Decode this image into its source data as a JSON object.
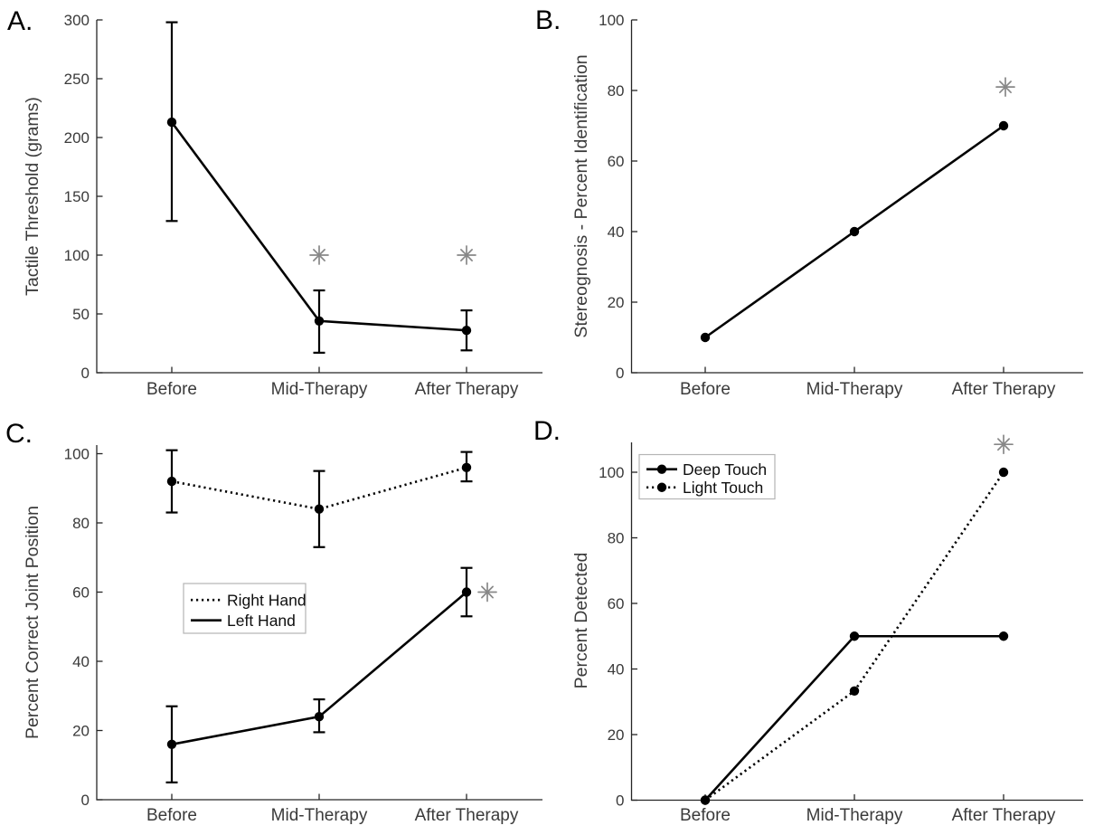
{
  "figure": {
    "background": "#ffffff",
    "palette": {
      "data_color": "#000000",
      "axis_color": "#262626",
      "tick_label_color": "#3a3a3a",
      "asterisk_color": "#888888",
      "legend_border_color": "#b5b5b5",
      "legend_text_color": "#0f0f0f",
      "panel_letter_color": "#000000"
    }
  },
  "chart_data": [
    {
      "panel_label": "A.",
      "type": "line",
      "title": "",
      "xlabel": "",
      "ylabel": "Tactile Threshold (grams)",
      "categories": [
        "Before",
        "Mid-Therapy",
        "After Therapy"
      ],
      "ylim": [
        0,
        300
      ],
      "yticks": [
        0,
        50,
        100,
        150,
        200,
        250,
        300
      ],
      "grid": false,
      "legend": null,
      "series": [
        {
          "line_style": "solid",
          "marker": "filled-circle",
          "values": [
            213,
            44,
            36
          ],
          "err_low": [
            129,
            17,
            19
          ],
          "err_high": [
            298,
            70,
            53
          ]
        }
      ],
      "annotations": [
        {
          "symbol": "asterisk",
          "category": "Mid-Therapy",
          "y": 100
        },
        {
          "symbol": "asterisk",
          "category": "After Therapy",
          "y": 100
        }
      ]
    },
    {
      "panel_label": "B.",
      "type": "line",
      "title": "",
      "xlabel": "",
      "ylabel": "Stereognosis - Percent Identification",
      "categories": [
        "Before",
        "Mid-Therapy",
        "After Therapy"
      ],
      "ylim": [
        0,
        100
      ],
      "yticks": [
        0,
        20,
        40,
        60,
        80,
        100
      ],
      "grid": false,
      "legend": null,
      "series": [
        {
          "line_style": "solid",
          "marker": "filled-circle",
          "values": [
            10,
            40,
            70
          ]
        }
      ],
      "annotations": [
        {
          "symbol": "asterisk",
          "category": "After Therapy",
          "y": 81
        }
      ]
    },
    {
      "panel_label": "C.",
      "type": "line",
      "title": "",
      "xlabel": "",
      "ylabel": "Percent Correct Joint Position",
      "categories": [
        "Before",
        "Mid-Therapy",
        "After Therapy"
      ],
      "ylim": [
        0,
        102
      ],
      "yticks": [
        0,
        20,
        40,
        60,
        80,
        100
      ],
      "grid": false,
      "legend": {
        "position": "middle-left",
        "show_markers": false
      },
      "series": [
        {
          "name": "Right Hand",
          "line_style": "dotted",
          "marker": "filled-circle",
          "values": [
            92,
            84,
            96
          ],
          "err_low": [
            83,
            73,
            92
          ],
          "err_high": [
            101,
            95,
            100.5
          ]
        },
        {
          "name": "Left Hand",
          "line_style": "solid",
          "marker": "filled-circle",
          "values": [
            16,
            24,
            60
          ],
          "err_low": [
            5,
            19.5,
            53
          ],
          "err_high": [
            27,
            29,
            67
          ]
        }
      ],
      "annotations": [
        {
          "symbol": "asterisk",
          "category": "After Therapy",
          "y": 60
        }
      ]
    },
    {
      "panel_label": "D.",
      "type": "line",
      "title": "",
      "xlabel": "",
      "ylabel": "Percent Detected",
      "categories": [
        "Before",
        "Mid-Therapy",
        "After Therapy"
      ],
      "ylim": [
        0,
        110
      ],
      "yticks": [
        0,
        20,
        40,
        60,
        80,
        100
      ],
      "grid": false,
      "legend": {
        "position": "top-left",
        "show_markers": true
      },
      "series": [
        {
          "name": "Deep Touch",
          "line_style": "solid",
          "marker": "filled-circle",
          "values": [
            0,
            50,
            50
          ]
        },
        {
          "name": "Light Touch",
          "line_style": "dotted",
          "marker": "filled-circle",
          "values": [
            0,
            33.3,
            100
          ]
        }
      ],
      "annotations": [
        {
          "symbol": "asterisk",
          "category": "After Therapy",
          "y": 108.5
        }
      ]
    }
  ]
}
